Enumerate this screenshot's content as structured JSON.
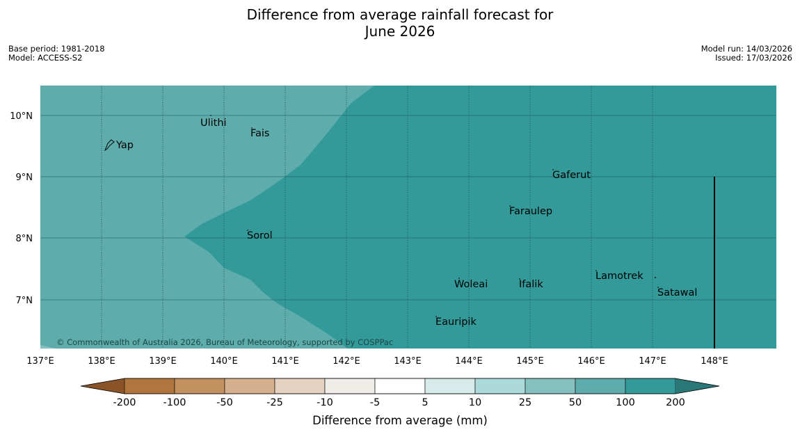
{
  "title_line1": "Difference from average rainfall forecast for",
  "title_line2": "June 2026",
  "meta": {
    "base_period": "Base period: 1981-2018",
    "model": "Model: ACCESS-S2",
    "model_run": "Model run: 14/03/2026",
    "issued": "Issued: 17/03/2026"
  },
  "map": {
    "lat_labels": [
      "10°N",
      "9°N",
      "8°N",
      "7°N"
    ],
    "lon_labels": [
      "137°E",
      "138°E",
      "139°E",
      "140°E",
      "141°E",
      "142°E",
      "143°E",
      "144°E",
      "145°E",
      "146°E",
      "147°E",
      "148°E"
    ],
    "places": [
      "Ulithi",
      "Fais",
      "Yap",
      "Gaferut",
      "Faraulep",
      "Sorol",
      "Lamotrek",
      "Woleai",
      "Ifalik",
      "Satawal",
      "Eauripik"
    ],
    "copyright": "© Commonwealth of Australia 2026, Bureau of Meteorology, supported by COSPPac"
  },
  "legend": {
    "tick_labels": [
      "-200",
      "-100",
      "-50",
      "-25",
      "-10",
      "-5",
      "5",
      "10",
      "25",
      "50",
      "100",
      "200"
    ],
    "title": "Difference from average (mm)",
    "colors": [
      "#8b5328",
      "#b1763d",
      "#c2915f",
      "#d5b08e",
      "#e4d1c0",
      "#f0ede8",
      "#ffffff",
      "#d6ebea",
      "#acd9d9",
      "#84c1c0",
      "#5eacac",
      "#339999",
      "#2a7777"
    ]
  },
  "colors": {
    "zone_light": "#5eacac",
    "zone_dark": "#339999"
  }
}
